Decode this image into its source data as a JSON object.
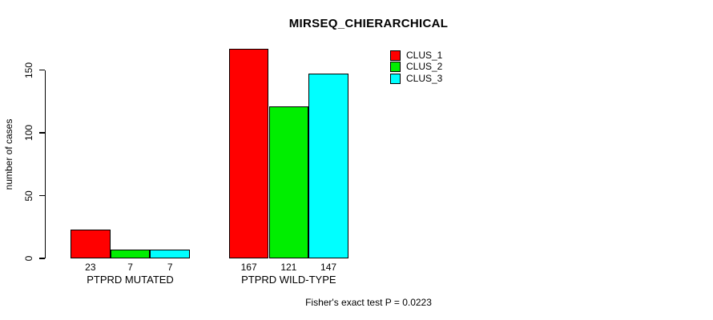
{
  "chart_data": {
    "type": "bar",
    "title": "MIRSEQ_CHIERARCHICAL",
    "xlabel": "",
    "ylabel": "number of cases",
    "categories": [
      "PTPRD MUTATED",
      "PTPRD WILD-TYPE"
    ],
    "series": [
      {
        "name": "CLUS_1",
        "color": "#FF0000",
        "values": [
          23,
          167
        ]
      },
      {
        "name": "CLUS_2",
        "color": "#00EE00",
        "values": [
          7,
          121
        ]
      },
      {
        "name": "CLUS_3",
        "color": "#00FFFF",
        "values": [
          7,
          147
        ]
      }
    ],
    "bar_value_labels": [
      [
        23,
        7,
        7
      ],
      [
        167,
        121,
        147
      ]
    ],
    "yticks": [
      0,
      50,
      100,
      150
    ],
    "ylim": [
      0,
      175
    ],
    "grid": false,
    "legend_position": "top-right",
    "bar_border_color": "#000000",
    "annotation": "Fisher's exact test P = 0.0223"
  },
  "legend": {
    "items": [
      {
        "label": "CLUS_1",
        "color": "#FF0000"
      },
      {
        "label": "CLUS_2",
        "color": "#00EE00"
      },
      {
        "label": "CLUS_3",
        "color": "#00FFFF"
      }
    ]
  }
}
